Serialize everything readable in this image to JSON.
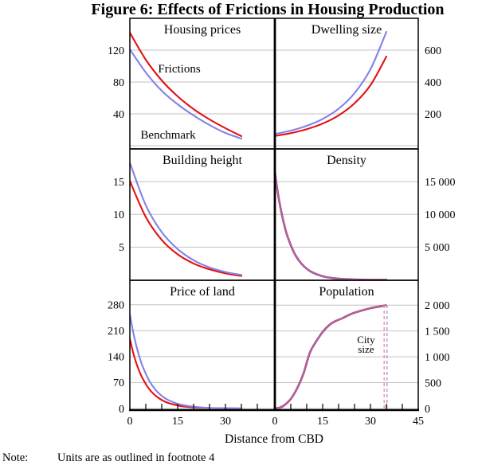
{
  "title": "Figure 6: Effects of Frictions in Housing Production",
  "note": {
    "label": "Note:",
    "text": "Units are as outlined in footnote 4"
  },
  "colors": {
    "frictions": "#e11212",
    "benchmark": "#8282e8",
    "frictions_dash": "#f29090",
    "benchmark_dash": "#9c9cee",
    "grid": "#c2c2c2",
    "axis": "#000000"
  },
  "x_axis": {
    "label": "Distance from CBD",
    "unit_range": [
      0,
      45
    ],
    "minor_tick_step": 5,
    "panels": {
      "left": {
        "tick_values": [
          0,
          15,
          30
        ],
        "tick_labels": [
          "0",
          "15",
          "30"
        ]
      },
      "right": {
        "tick_values": [
          0,
          15,
          30,
          45
        ],
        "tick_labels": [
          "0",
          "15",
          "30",
          "45"
        ]
      }
    }
  },
  "chart_data": {
    "type": "line",
    "layout": "3x2-panel-grid",
    "legend": {
      "frictions_label": "Frictions",
      "benchmark_label": "Benchmark"
    },
    "panels": [
      {
        "title": "Housing prices",
        "position": "top-left",
        "axis_side": "left",
        "axis_ticks": {
          "values": [
            120,
            80,
            40
          ],
          "labels": [
            "120",
            "80",
            "40"
          ]
        },
        "axis_max": 160,
        "zero_gridline": true,
        "overlapping": false,
        "series": [
          {
            "name": "Frictions",
            "color_key": "frictions",
            "points": [
              [
                0,
                142
              ],
              [
                5,
                108
              ],
              [
                10,
                82
              ],
              [
                15,
                62
              ],
              [
                20,
                46
              ],
              [
                25,
                33
              ],
              [
                30,
                22
              ],
              [
                35,
                12
              ]
            ]
          },
          {
            "name": "Benchmark",
            "color_key": "benchmark",
            "points": [
              [
                0,
                121
              ],
              [
                5,
                92
              ],
              [
                10,
                69
              ],
              [
                15,
                52
              ],
              [
                20,
                38
              ],
              [
                25,
                26
              ],
              [
                30,
                16
              ],
              [
                35,
                9
              ]
            ]
          }
        ],
        "annotations": [
          {
            "type": "text",
            "text": "Frictions",
            "x": 15.5,
            "v": 92,
            "color_key": "frictions",
            "size": "annot"
          },
          {
            "type": "text",
            "text": "Benchmark",
            "x": 12,
            "v": 9,
            "color_key": "benchmark",
            "size": "annot"
          }
        ]
      },
      {
        "title": "Dwelling size",
        "position": "top-right",
        "axis_side": "right",
        "axis_ticks": {
          "values": [
            600,
            400,
            200
          ],
          "labels": [
            "600",
            "400",
            "200"
          ]
        },
        "axis_max": 800,
        "zero_gridline": true,
        "overlapping": false,
        "series": [
          {
            "name": "Frictions",
            "color_key": "frictions",
            "points": [
              [
                0,
                61
              ],
              [
                5,
                79
              ],
              [
                10,
                104
              ],
              [
                15,
                139
              ],
              [
                20,
                190
              ],
              [
                25,
                266
              ],
              [
                30,
                380
              ],
              [
                35,
                560
              ]
            ]
          },
          {
            "name": "Benchmark",
            "color_key": "benchmark",
            "points": [
              [
                0,
                73
              ],
              [
                5,
                95
              ],
              [
                10,
                125
              ],
              [
                15,
                168
              ],
              [
                20,
                232
              ],
              [
                25,
                330
              ],
              [
                30,
                480
              ],
              [
                35,
                715
              ]
            ]
          }
        ],
        "annotations": []
      },
      {
        "title": "Building height",
        "position": "middle-left",
        "axis_side": "left",
        "axis_ticks": {
          "values": [
            15,
            10,
            5
          ],
          "labels": [
            "15",
            "10",
            "5"
          ]
        },
        "axis_max": 20,
        "zero_gridline": false,
        "overlapping": false,
        "series": [
          {
            "name": "Frictions",
            "color_key": "frictions",
            "points": [
              [
                0,
                15.1
              ],
              [
                5,
                9.6
              ],
              [
                10,
                6.1
              ],
              [
                15,
                3.9
              ],
              [
                20,
                2.5
              ],
              [
                25,
                1.6
              ],
              [
                30,
                1.0
              ],
              [
                35,
                0.6
              ]
            ]
          },
          {
            "name": "Benchmark",
            "color_key": "benchmark",
            "points": [
              [
                0,
                17.9
              ],
              [
                5,
                11.4
              ],
              [
                10,
                7.3
              ],
              [
                15,
                4.7
              ],
              [
                20,
                3.0
              ],
              [
                25,
                1.9
              ],
              [
                30,
                1.2
              ],
              [
                35,
                0.75
              ]
            ]
          }
        ],
        "annotations": []
      },
      {
        "title": "Density",
        "position": "middle-right",
        "axis_side": "right",
        "axis_ticks": {
          "values": [
            15000,
            10000,
            5000
          ],
          "labels": [
            "15 000",
            "10 000",
            "5 000"
          ]
        },
        "axis_max": 20000,
        "zero_gridline": false,
        "overlapping": true,
        "series": [
          {
            "name": "Frictions",
            "color_key": "frictions",
            "points": [
              [
                0,
                16450
              ],
              [
                1,
                13100
              ],
              [
                2,
                10450
              ],
              [
                3,
                8300
              ],
              [
                4,
                6600
              ],
              [
                6,
                4200
              ],
              [
                8,
                2670
              ],
              [
                10,
                1700
              ],
              [
                12,
                1080
              ],
              [
                15,
                545
              ],
              [
                18,
                277
              ],
              [
                21,
                141
              ],
              [
                25,
                57
              ],
              [
                30,
                18
              ],
              [
                35,
                8
              ]
            ]
          },
          {
            "name": "Benchmark",
            "color_key": "benchmark",
            "points": [
              [
                0,
                16450
              ],
              [
                1,
                13100
              ],
              [
                2,
                10450
              ],
              [
                3,
                8300
              ],
              [
                4,
                6600
              ],
              [
                6,
                4200
              ],
              [
                8,
                2670
              ],
              [
                10,
                1700
              ],
              [
                12,
                1080
              ],
              [
                15,
                545
              ],
              [
                18,
                277
              ],
              [
                21,
                141
              ],
              [
                25,
                57
              ],
              [
                30,
                18
              ],
              [
                35,
                8
              ]
            ]
          }
        ],
        "annotations": []
      },
      {
        "title": "Price of land",
        "position": "bottom-left",
        "axis_side": "left",
        "axis_ticks": {
          "values": [
            280,
            210,
            140,
            70,
            0
          ],
          "labels": [
            "280",
            "210",
            "140",
            "70",
            "0"
          ]
        },
        "axis_max": 346,
        "zero_gridline": false,
        "overlapping": false,
        "series": [
          {
            "name": "Frictions",
            "color_key": "frictions",
            "points": [
              [
                0,
                188
              ],
              [
                1,
                152
              ],
              [
                2,
                123
              ],
              [
                3,
                100
              ],
              [
                4,
                81
              ],
              [
                6,
                53
              ],
              [
                8,
                35
              ],
              [
                10,
                23
              ],
              [
                12,
                15
              ],
              [
                15,
                8.2
              ],
              [
                18,
                4.4
              ],
              [
                21,
                2.4
              ],
              [
                25,
                1.0
              ],
              [
                30,
                0.4
              ],
              [
                35,
                0.2
              ]
            ]
          },
          {
            "name": "Benchmark",
            "color_key": "benchmark",
            "points": [
              [
                0,
                254
              ],
              [
                1,
                208
              ],
              [
                2,
                170
              ],
              [
                3,
                139
              ],
              [
                4,
                114
              ],
              [
                6,
                76
              ],
              [
                8,
                51
              ],
              [
                10,
                34
              ],
              [
                12,
                23
              ],
              [
                15,
                12.6
              ],
              [
                18,
                7.0
              ],
              [
                21,
                3.8
              ],
              [
                25,
                1.6
              ],
              [
                30,
                0.6
              ],
              [
                35,
                0.3
              ]
            ]
          }
        ],
        "annotations": []
      },
      {
        "title": "Population",
        "position": "bottom-right",
        "axis_side": "right",
        "axis_ticks": {
          "values": [
            2000,
            1500,
            1000,
            500,
            0
          ],
          "labels": [
            "2 000",
            "1 500",
            "1 000",
            "500",
            "0"
          ]
        },
        "axis_max": 2480,
        "zero_gridline": false,
        "overlapping": true,
        "series": [
          {
            "name": "Frictions",
            "color_key": "frictions",
            "points": [
              [
                0,
                0
              ],
              [
                1.5,
                15
              ],
              [
                3,
                65
              ],
              [
                5,
                185
              ],
              [
                7,
                390
              ],
              [
                9,
                680
              ],
              [
                11,
                1080
              ],
              [
                13,
                1300
              ],
              [
                15,
                1480
              ],
              [
                17,
                1610
              ],
              [
                19,
                1690
              ],
              [
                21,
                1740
              ],
              [
                24,
                1830
              ],
              [
                27,
                1890
              ],
              [
                30,
                1940
              ],
              [
                33,
                1975
              ],
              [
                34.8,
                1995
              ]
            ]
          },
          {
            "name": "Benchmark",
            "color_key": "benchmark",
            "points": [
              [
                0,
                0
              ],
              [
                1.5,
                15
              ],
              [
                3,
                65
              ],
              [
                5,
                185
              ],
              [
                7,
                390
              ],
              [
                9,
                680
              ],
              [
                11,
                1080
              ],
              [
                13,
                1300
              ],
              [
                15,
                1480
              ],
              [
                17,
                1610
              ],
              [
                19,
                1690
              ],
              [
                21,
                1740
              ],
              [
                24,
                1830
              ],
              [
                27,
                1890
              ],
              [
                30,
                1940
              ],
              [
                33,
                1975
              ],
              [
                34.8,
                1995
              ]
            ]
          }
        ],
        "annotations": [
          {
            "type": "text",
            "text": "City",
            "x": 28.6,
            "v": 1260,
            "size": "annot-sm"
          },
          {
            "type": "text",
            "text": "size",
            "x": 28.6,
            "v": 1075,
            "size": "annot-sm"
          },
          {
            "type": "vline",
            "x": 34.3,
            "v_from": 0,
            "v_to": 2000,
            "color_key": "frictions_dash"
          },
          {
            "type": "vline",
            "x": 35.2,
            "v_from": 0,
            "v_to": 2000,
            "color_key": "benchmark_dash"
          }
        ]
      }
    ]
  }
}
